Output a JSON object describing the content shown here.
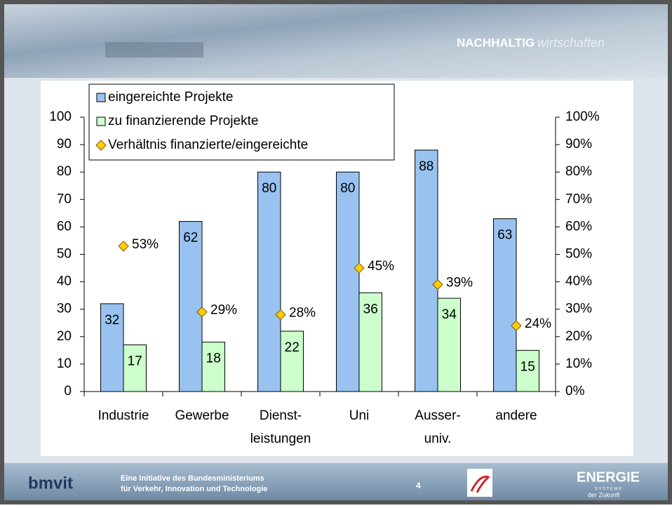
{
  "header": {
    "brand_bold": "NACHHALTIG",
    "brand_light": "wirtschaften"
  },
  "chart_data": {
    "type": "bar",
    "categories": [
      [
        "Industrie"
      ],
      [
        "Gewerbe"
      ],
      [
        "Dienst-",
        "leistungen"
      ],
      [
        "Uni"
      ],
      [
        "Ausser-",
        "univ."
      ],
      [
        "andere"
      ]
    ],
    "series": [
      {
        "name": "eingereichte Projekte",
        "color": "#99c2f0",
        "kind": "bar",
        "values": [
          32,
          62,
          80,
          80,
          88,
          63
        ]
      },
      {
        "name": "zu finanzierende Projekte",
        "color": "#ccffcc",
        "kind": "bar",
        "values": [
          17,
          18,
          22,
          36,
          34,
          15
        ]
      },
      {
        "name": "Verhältnis finanzierte/eingereichte",
        "color": "#ffcc00",
        "kind": "diamond",
        "axis": "y2",
        "values": [
          53,
          29,
          28,
          45,
          39,
          24
        ],
        "value_labels": [
          "53%",
          "29%",
          "28%",
          "45%",
          "39%",
          "24%"
        ]
      }
    ],
    "ylim": [
      0,
      100
    ],
    "yticks": [
      0,
      10,
      20,
      30,
      40,
      50,
      60,
      70,
      80,
      90,
      100
    ],
    "y2lim": [
      0,
      100
    ],
    "y2ticks": [
      {
        "value": 0,
        "label": "0%"
      },
      {
        "value": 10,
        "label": "10%"
      },
      {
        "value": 20,
        "label": "20%"
      },
      {
        "value": 30,
        "label": "30%"
      },
      {
        "value": 40,
        "label": "40%"
      },
      {
        "value": 50,
        "label": "50%"
      },
      {
        "value": 60,
        "label": "60%"
      },
      {
        "value": 70,
        "label": "70%"
      },
      {
        "value": 80,
        "label": "80%"
      },
      {
        "value": 90,
        "label": "90%"
      },
      {
        "value": 100,
        "label": "100%"
      }
    ],
    "grid": false,
    "legend": "top-left"
  },
  "footer": {
    "logo": "bmvit",
    "initiative": [
      "Eine Initiative des Bundesministeriums",
      "für Verkehr, Innovation und Technologie"
    ],
    "page": "4",
    "brand": "ENERGIE",
    "brand_sub": [
      "S Y S T E M E",
      "der Zukunft"
    ]
  }
}
